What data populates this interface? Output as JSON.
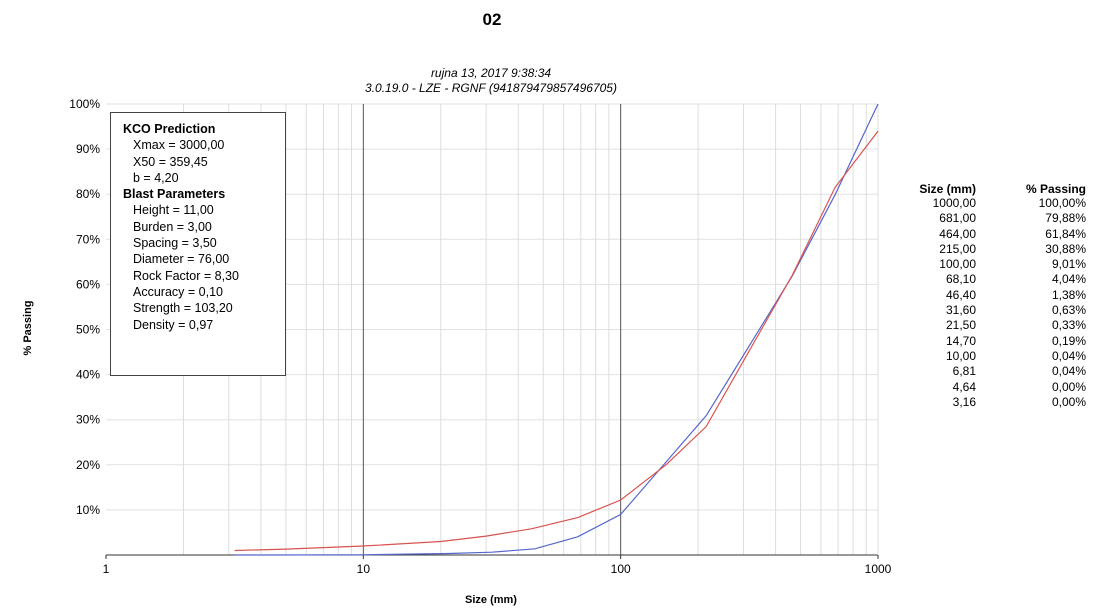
{
  "chart_data": {
    "type": "line",
    "title": "02",
    "subtitle_lines": [
      "rujna 13, 2017 9:38:34",
      "3.0.19.0  -  LZE - RGNF (941879479857496705)"
    ],
    "xlabel": "Size (mm)",
    "ylabel": "% Passing",
    "x_scale": "log",
    "xlim": [
      1,
      1000
    ],
    "ylim": [
      0,
      100
    ],
    "x_ticks": [
      "1",
      "10",
      "100",
      "1000"
    ],
    "y_ticks": [
      "10%",
      "20%",
      "30%",
      "40%",
      "50%",
      "60%",
      "70%",
      "80%",
      "90%",
      "100%"
    ],
    "y_tick_values": [
      10,
      20,
      30,
      40,
      50,
      60,
      70,
      80,
      90,
      100
    ],
    "grid": true,
    "series": [
      {
        "color": "#5566cc",
        "x": [
          3.16,
          4.64,
          6.81,
          10.0,
          14.7,
          21.5,
          31.6,
          46.4,
          68.1,
          100.0,
          215.0,
          464.0,
          681.0,
          1000.0
        ],
        "y": [
          0.0,
          0.0,
          0.04,
          0.04,
          0.19,
          0.33,
          0.63,
          1.38,
          4.04,
          9.01,
          30.88,
          61.84,
          79.88,
          100.0
        ]
      },
      {
        "color": "#d9534f",
        "x": [
          3.16,
          5,
          10,
          20,
          30,
          45,
          68.1,
          100,
          150,
          215,
          464,
          681,
          1000
        ],
        "y": [
          1.0,
          1.3,
          2.0,
          3.0,
          4.2,
          5.8,
          8.3,
          12.2,
          20.0,
          28.5,
          62.0,
          81.5,
          94.0
        ]
      }
    ],
    "info_box": {
      "heading1": "KCO Prediction",
      "group1": [
        "Xmax = 3000,00",
        "X50 = 359,45",
        "b = 4,20"
      ],
      "heading2": "Blast Parameters",
      "group2": [
        "Height = 11,00",
        "Burden = 3,00",
        "Spacing = 3,50",
        "Diameter = 76,00",
        "Rock Factor = 8,30",
        "Accuracy = 0,10",
        "Strength = 103,20",
        "Density = 0,97"
      ]
    },
    "table": {
      "headers": [
        "Size (mm)",
        "% Passing"
      ],
      "rows": [
        [
          "1000,00",
          "100,00%"
        ],
        [
          "681,00",
          "79,88%"
        ],
        [
          "464,00",
          "61,84%"
        ],
        [
          "215,00",
          "30,88%"
        ],
        [
          "100,00",
          "9,01%"
        ],
        [
          "68,10",
          "4,04%"
        ],
        [
          "46,40",
          "1,38%"
        ],
        [
          "31,60",
          "0,63%"
        ],
        [
          "21,50",
          "0,33%"
        ],
        [
          "14,70",
          "0,19%"
        ],
        [
          "10,00",
          "0,04%"
        ],
        [
          "6,81",
          "0,04%"
        ],
        [
          "4,64",
          "0,00%"
        ],
        [
          "3,16",
          "0,00%"
        ]
      ]
    }
  }
}
